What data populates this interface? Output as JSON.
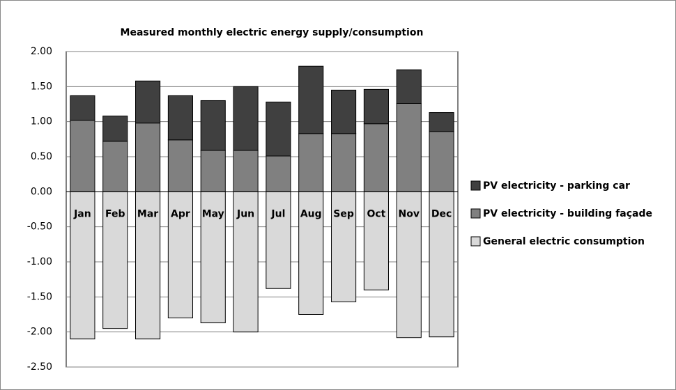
{
  "chart_data": {
    "type": "stacked_bar",
    "title": "Measured monthly electric energy supply/consumption",
    "categories": [
      "Jan",
      "Feb",
      "Mar",
      "Apr",
      "May",
      "Jun",
      "Jul",
      "Aug",
      "Sep",
      "Oct",
      "Nov",
      "Dec"
    ],
    "series": [
      {
        "name": "General electric consumption",
        "color": "#d9d9d9",
        "values": [
          -2.1,
          -1.95,
          -2.1,
          -1.8,
          -1.87,
          -2.0,
          -1.38,
          -1.75,
          -1.57,
          -1.4,
          -2.08,
          -2.07
        ]
      },
      {
        "name": "PV electricity - building façade",
        "color": "#808080",
        "values": [
          1.02,
          0.72,
          0.98,
          0.74,
          0.59,
          0.59,
          0.51,
          0.83,
          0.83,
          0.97,
          1.26,
          0.86
        ]
      },
      {
        "name": "PV electricity - parking car",
        "color": "#404040",
        "values": [
          0.35,
          0.36,
          0.6,
          0.63,
          0.71,
          0.91,
          0.77,
          0.96,
          0.62,
          0.49,
          0.48,
          0.27
        ]
      }
    ],
    "ylim": [
      -2.5,
      2.0
    ],
    "yticks": [
      {
        "value": -2.5,
        "label": "-2.50"
      },
      {
        "value": -2.0,
        "label": "-2.00"
      },
      {
        "value": -1.5,
        "label": "-1.50"
      },
      {
        "value": -1.0,
        "label": "-1.00"
      },
      {
        "value": -0.5,
        "label": "-0.50"
      },
      {
        "value": 0,
        "label": "0.00"
      },
      {
        "value": 0.5,
        "label": "0.50"
      },
      {
        "value": 1.0,
        "label": "1.00"
      },
      {
        "value": 1.5,
        "label": "1.50"
      },
      {
        "value": 2.0,
        "label": "2.00"
      }
    ],
    "grid": true,
    "legend": "right"
  }
}
